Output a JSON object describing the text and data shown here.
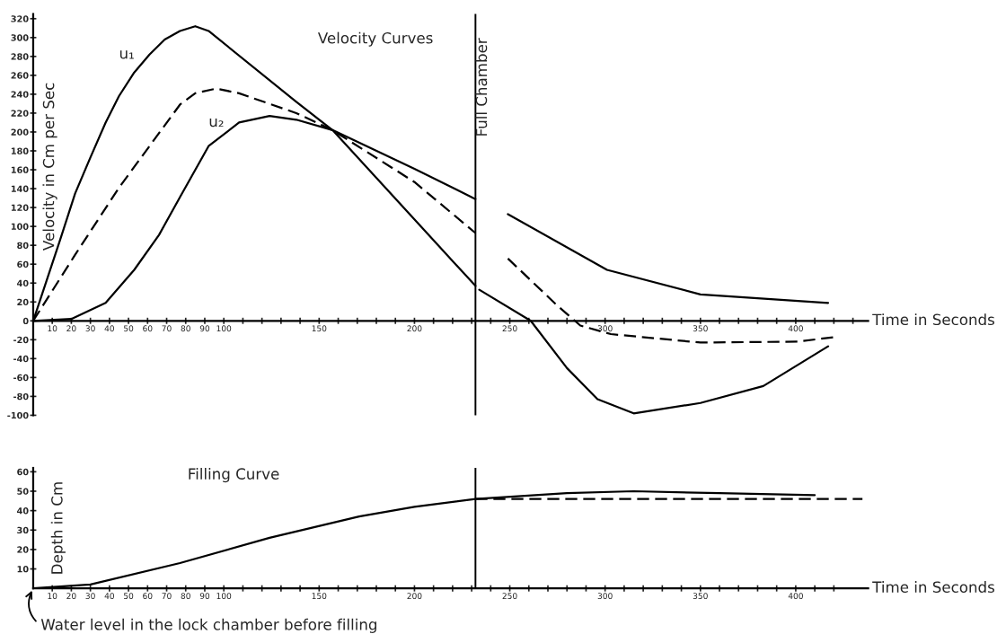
{
  "chart_data": [
    {
      "type": "line",
      "title": "Velocity Curves",
      "xlabel": "Time in Seconds",
      "ylabel": "Velocity in Cm per Sec",
      "xlim": [
        0,
        438
      ],
      "ylim": [
        -100,
        325
      ],
      "xticks": [
        10,
        20,
        30,
        40,
        50,
        60,
        70,
        80,
        90,
        100,
        {
          "value": 110,
          "label": null
        },
        {
          "value": 120,
          "label": null
        },
        {
          "value": 130,
          "label": null
        },
        {
          "value": 140,
          "label": null
        },
        150,
        {
          "value": 160,
          "label": null
        },
        {
          "value": 170,
          "label": null
        },
        {
          "value": 180,
          "label": null
        },
        {
          "value": 190,
          "label": null
        },
        200,
        {
          "value": 210,
          "label": null
        },
        {
          "value": 220,
          "label": null
        },
        {
          "value": 230,
          "label": null
        },
        {
          "value": 240,
          "label": null
        },
        250,
        {
          "value": 260,
          "label": null
        },
        {
          "value": 270,
          "label": null
        },
        {
          "value": 280,
          "label": null
        },
        {
          "value": 290,
          "label": null
        },
        300,
        {
          "value": 310,
          "label": null
        },
        {
          "value": 320,
          "label": null
        },
        {
          "value": 330,
          "label": null
        },
        {
          "value": 340,
          "label": null
        },
        350,
        {
          "value": 360,
          "label": null
        },
        {
          "value": 370,
          "label": null
        },
        {
          "value": 380,
          "label": null
        },
        {
          "value": 390,
          "label": null
        },
        400,
        {
          "value": 410,
          "label": null
        },
        {
          "value": 420,
          "label": null
        },
        {
          "value": 430,
          "label": null
        }
      ],
      "yticks": [
        -100,
        -80,
        -60,
        -40,
        -20,
        0,
        20,
        40,
        60,
        80,
        100,
        120,
        140,
        160,
        180,
        200,
        220,
        240,
        260,
        280,
        300,
        320
      ],
      "series": [
        {
          "name": "u₁",
          "color": "#000000",
          "line_style": "solid",
          "x": [
            0,
            14,
            22,
            30,
            38,
            45,
            53,
            61,
            69,
            77,
            85,
            92,
            138,
            157,
            232,
            null,
            234,
            261,
            280,
            296,
            315,
            350,
            383,
            417
          ],
          "values": [
            0,
            85,
            135,
            173,
            210,
            238,
            263,
            282,
            298,
            307,
            312,
            307,
            232,
            202,
            37,
            null,
            33,
            0,
            -50,
            -83,
            -98,
            -87,
            -69,
            -27
          ]
        },
        {
          "color": "#000000",
          "line_style": "dashed",
          "x": [
            0,
            22,
            45,
            61,
            77,
            85,
            96,
            108,
            138,
            157,
            200,
            232,
            null,
            249,
            275,
            287,
            303,
            350,
            401,
            421
          ],
          "values": [
            0,
            70,
            141,
            185,
            229,
            241,
            246,
            241,
            220,
            202,
            147,
            93,
            null,
            66,
            16,
            -5,
            -14,
            -23,
            -22,
            -17
          ]
        },
        {
          "name": "u₂",
          "color": "#000000",
          "line_style": "solid",
          "x": [
            0,
            20,
            38,
            53,
            66,
            77,
            92,
            108,
            124,
            138,
            157,
            200,
            232,
            null,
            249,
            301,
            350,
            417
          ],
          "values": [
            0,
            2,
            19,
            54,
            91,
            131,
            185,
            210,
            217,
            213,
            202,
            161,
            129,
            null,
            113,
            54,
            28,
            19
          ]
        }
      ],
      "ref_lines": [
        {
          "axis": "x",
          "value": 232,
          "label": "Full Chamber",
          "color": "#000000"
        }
      ]
    },
    {
      "type": "line",
      "title": "Filling Curve",
      "xlabel": "Time in Seconds",
      "ylabel": "Depth in Cm",
      "xlim": [
        0,
        438
      ],
      "ylim": [
        0,
        62
      ],
      "xticks": [
        10,
        20,
        30,
        40,
        50,
        60,
        70,
        80,
        90,
        100,
        {
          "value": 110,
          "label": null
        },
        {
          "value": 120,
          "label": null
        },
        {
          "value": 130,
          "label": null
        },
        {
          "value": 140,
          "label": null
        },
        150,
        {
          "value": 160,
          "label": null
        },
        {
          "value": 170,
          "label": null
        },
        {
          "value": 180,
          "label": null
        },
        {
          "value": 190,
          "label": null
        },
        200,
        {
          "value": 210,
          "label": null
        },
        {
          "value": 220,
          "label": null
        },
        {
          "value": 230,
          "label": null
        },
        {
          "value": 240,
          "label": null
        },
        250,
        {
          "value": 260,
          "label": null
        },
        {
          "value": 270,
          "label": null
        },
        {
          "value": 280,
          "label": null
        },
        {
          "value": 290,
          "label": null
        },
        300,
        {
          "value": 310,
          "label": null
        },
        {
          "value": 320,
          "label": null
        },
        {
          "value": 330,
          "label": null
        },
        {
          "value": 340,
          "label": null
        },
        350,
        {
          "value": 360,
          "label": null
        },
        {
          "value": 370,
          "label": null
        },
        {
          "value": 380,
          "label": null
        },
        {
          "value": 390,
          "label": null
        },
        400,
        {
          "value": 410,
          "label": null
        },
        {
          "value": 420,
          "label": null
        }
      ],
      "yticks": [
        10,
        20,
        30,
        40,
        50,
        60
      ],
      "series": [
        {
          "color": "#000000",
          "line_style": "solid",
          "x": [
            0,
            30,
            77,
            124,
            171,
            200,
            232,
            280,
            315,
            360,
            410
          ],
          "values": [
            0,
            2,
            13,
            26,
            37,
            42,
            46,
            49,
            50,
            49,
            48
          ]
        },
        {
          "color": "#000000",
          "line_style": "dashed",
          "x": [
            232,
            435
          ],
          "values": [
            46,
            46
          ]
        }
      ],
      "ref_lines": [
        {
          "axis": "x",
          "value": 232,
          "label": null,
          "color": "#000000"
        }
      ],
      "annotations": [
        {
          "text": "Water level in the lock chamber before filling",
          "x": 0,
          "y": 0
        }
      ]
    }
  ]
}
